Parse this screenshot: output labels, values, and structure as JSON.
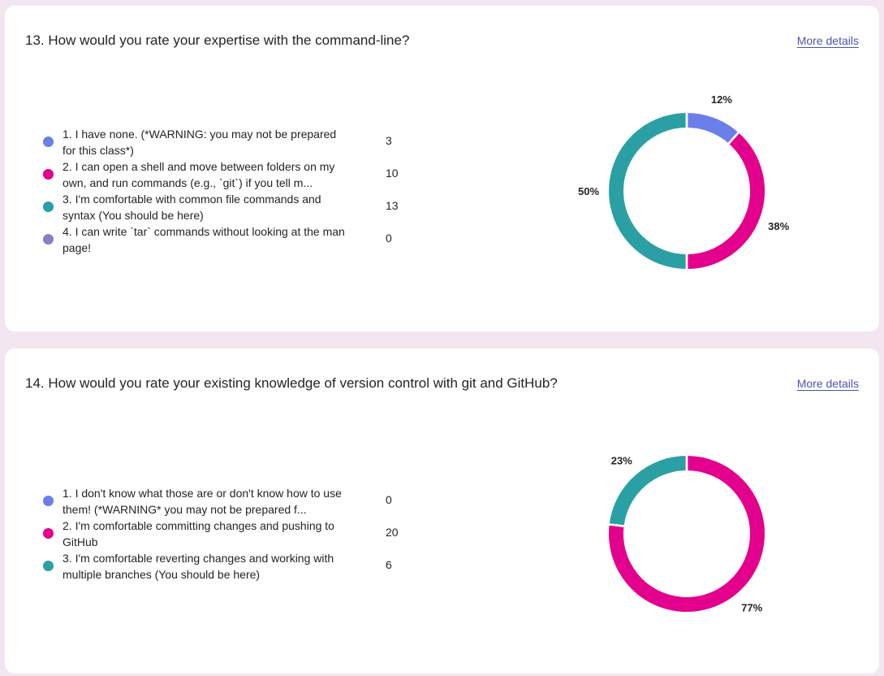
{
  "questions": [
    {
      "title": "13. How would you rate your expertise with the command-line?",
      "more_details": "More details",
      "options": [
        {
          "label": "1. I have none. (*WARNING: you may not be prepared for this class*)",
          "count": "3",
          "color": "#6b7fea"
        },
        {
          "label": "2. I can open a shell and move between folders on my own, and run commands (e.g., `git`) if you tell m...",
          "count": "10",
          "color": "#e3008c"
        },
        {
          "label": "3. I'm comfortable with common file commands and syntax (You should be here)",
          "count": "13",
          "color": "#2aa0a4"
        },
        {
          "label": "4. I can write `tar` commands without looking at the man page!",
          "count": "0",
          "color": "#8f7dc4"
        }
      ],
      "chart_data": {
        "type": "pie",
        "categories": [
          "1",
          "2",
          "3",
          "4"
        ],
        "values": [
          3,
          10,
          13,
          0
        ],
        "percent_labels": [
          "12%",
          "38%",
          "50%",
          ""
        ],
        "colors": [
          "#6b7fea",
          "#e3008c",
          "#2aa0a4",
          "#8f7dc4"
        ]
      }
    },
    {
      "title": "14. How would you rate your existing knowledge of version control with git and GitHub?",
      "more_details": "More details",
      "options": [
        {
          "label": "1. I don't know what those are or don't know how to use them! (*WARNING* you may not be prepared f...",
          "count": "0",
          "color": "#6b7fea"
        },
        {
          "label": "2. I'm comfortable committing changes and pushing to GitHub",
          "count": "20",
          "color": "#e3008c"
        },
        {
          "label": "3. I'm comfortable reverting changes and working with multiple branches (You should be here)",
          "count": "6",
          "color": "#2aa0a4"
        }
      ],
      "chart_data": {
        "type": "pie",
        "categories": [
          "1",
          "2",
          "3"
        ],
        "values": [
          0,
          20,
          6
        ],
        "percent_labels": [
          "",
          "77%",
          "23%"
        ],
        "colors": [
          "#6b7fea",
          "#e3008c",
          "#2aa0a4"
        ]
      }
    }
  ]
}
